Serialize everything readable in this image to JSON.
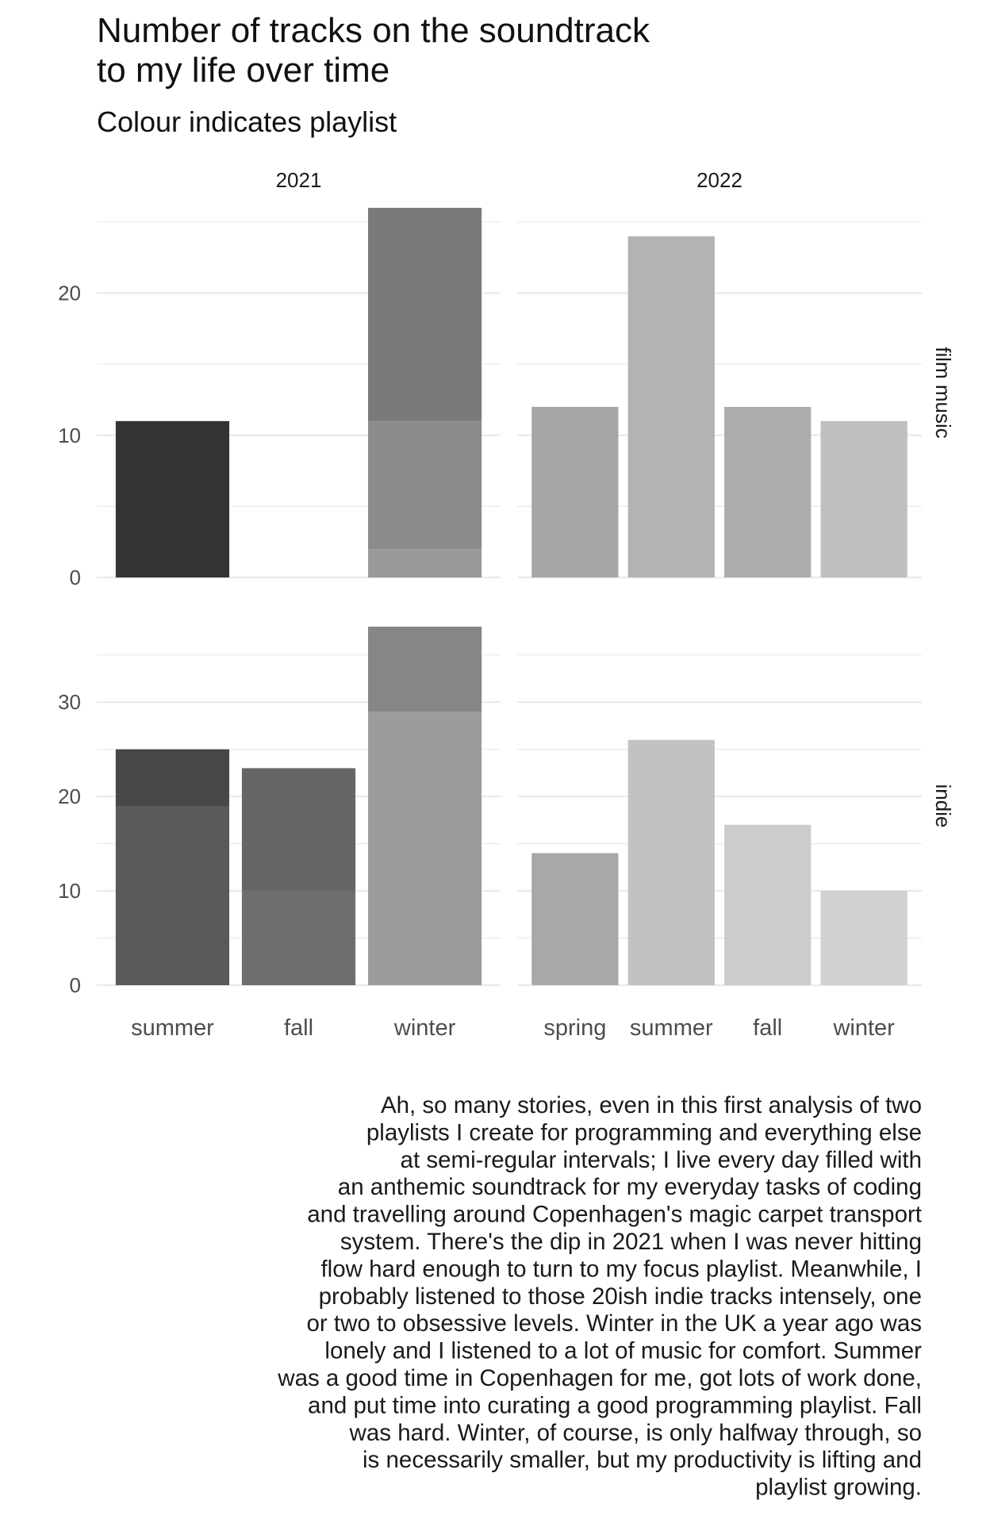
{
  "title_lines": [
    "Number of tracks on the soundtrack",
    "to my life over time"
  ],
  "subtitle": "Colour indicates playlist",
  "caption_lines": [
    "Ah, so many stories, even in this first analysis of two",
    "playlists I create for programming and everything else",
    "at semi-regular intervals; I live every day filled with",
    "an anthemic soundtrack for my everyday tasks of coding",
    "and travelling around Copenhagen's magic carpet transport",
    "system. There's the dip in 2021 when I was never hitting",
    "flow hard enough to turn to my focus playlist. Meanwhile, I",
    "probably listened to those 20ish indie tracks intensely, one",
    "or two to obsessive levels. Winter in the UK a year ago was",
    "lonely and I listened to a lot of music for comfort. Summer",
    "was a good time in Copenhagen for me, got lots of work done,",
    "and put time into curating a good programming playlist. Fall",
    "was hard. Winter, of course, is only halfway through, so",
    "is necessarily smaller, but my productivity is lifting and",
    "playlist growing."
  ],
  "chart_data": {
    "type": "bar",
    "stacked": true,
    "grid": true,
    "facet_columns": [
      "2021",
      "2022"
    ],
    "facet_rows": [
      "film music",
      "indie"
    ],
    "row_ylim": {
      "film music": [
        0,
        26
      ],
      "indie": [
        0,
        38
      ]
    },
    "row_yticks": {
      "film music": [
        0,
        10,
        20
      ],
      "indie": [
        0,
        10,
        20,
        30
      ]
    },
    "panels": [
      {
        "col": "2021",
        "row": "film music",
        "categories": [
          "summer",
          "fall",
          "winter"
        ],
        "segments": [
          {
            "category": "summer",
            "from": 0,
            "to": 11,
            "color": "#333333"
          },
          {
            "category": "winter",
            "from": 0,
            "to": 2,
            "color": "#999999"
          },
          {
            "category": "winter",
            "from": 2,
            "to": 11,
            "color": "#8c8c8c"
          },
          {
            "category": "winter",
            "from": 11,
            "to": 26,
            "color": "#7a7a7a"
          }
        ]
      },
      {
        "col": "2022",
        "row": "film music",
        "categories": [
          "spring",
          "summer",
          "fall",
          "winter"
        ],
        "segments": [
          {
            "category": "spring",
            "from": 0,
            "to": 12,
            "color": "#a6a6a6"
          },
          {
            "category": "summer",
            "from": 0,
            "to": 24,
            "color": "#b3b3b3"
          },
          {
            "category": "fall",
            "from": 0,
            "to": 12,
            "color": "#adadad"
          },
          {
            "category": "winter",
            "from": 0,
            "to": 11,
            "color": "#bfbfbf"
          }
        ]
      },
      {
        "col": "2021",
        "row": "indie",
        "categories": [
          "summer",
          "fall",
          "winter"
        ],
        "segments": [
          {
            "category": "summer",
            "from": 0,
            "to": 19,
            "color": "#595959"
          },
          {
            "category": "summer",
            "from": 19,
            "to": 25,
            "color": "#474747"
          },
          {
            "category": "fall",
            "from": 0,
            "to": 10,
            "color": "#6e6e6e"
          },
          {
            "category": "fall",
            "from": 10,
            "to": 23,
            "color": "#666666"
          },
          {
            "category": "winter",
            "from": 0,
            "to": 29,
            "color": "#9c9c9c"
          },
          {
            "category": "winter",
            "from": 29,
            "to": 38,
            "color": "#868686"
          }
        ]
      },
      {
        "col": "2022",
        "row": "indie",
        "categories": [
          "spring",
          "summer",
          "fall",
          "winter"
        ],
        "segments": [
          {
            "category": "spring",
            "from": 0,
            "to": 14,
            "color": "#a8a8a8"
          },
          {
            "category": "summer",
            "from": 0,
            "to": 26,
            "color": "#c2c2c2"
          },
          {
            "category": "fall",
            "from": 0,
            "to": 17,
            "color": "#cccccc"
          },
          {
            "category": "winter",
            "from": 0,
            "to": 10,
            "color": "#d1d1d1"
          }
        ]
      }
    ],
    "colors": {
      "grid": "#ebebeb",
      "tick_text": "#4d4d4d"
    }
  }
}
